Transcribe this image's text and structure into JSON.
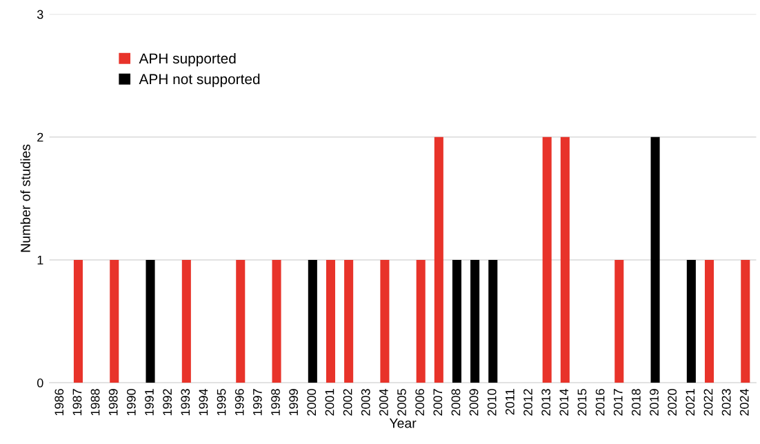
{
  "chart_data": {
    "type": "bar",
    "stacked": true,
    "xlabel": "Year",
    "ylabel": "Number of studies",
    "categories": [
      "1986",
      "1987",
      "1988",
      "1989",
      "1990",
      "1991",
      "1992",
      "1993",
      "1994",
      "1995",
      "1996",
      "1997",
      "1998",
      "1999",
      "2000",
      "2001",
      "2002",
      "2003",
      "2004",
      "2005",
      "2006",
      "2007",
      "2008",
      "2009",
      "2010",
      "2011",
      "2012",
      "2013",
      "2014",
      "2015",
      "2016",
      "2017",
      "2018",
      "2019",
      "2020",
      "2021",
      "2022",
      "2023",
      "2024"
    ],
    "series": [
      {
        "name": "APH supported",
        "color": "#e8332a",
        "values": [
          0,
          1,
          0,
          1,
          0,
          0,
          0,
          1,
          0,
          0,
          1,
          0,
          1,
          0,
          0,
          1,
          1,
          0,
          1,
          0,
          1,
          2,
          0,
          0,
          0,
          0,
          0,
          2,
          2,
          0,
          0,
          1,
          0,
          0,
          0,
          0,
          1,
          0,
          1
        ]
      },
      {
        "name": "APH not supported",
        "color": "#000000",
        "values": [
          0,
          0,
          0,
          0,
          0,
          1,
          0,
          0,
          0,
          0,
          0,
          0,
          0,
          0,
          1,
          0,
          0,
          0,
          0,
          0,
          0,
          0,
          1,
          1,
          1,
          0,
          0,
          0,
          0,
          0,
          0,
          0,
          0,
          2,
          0,
          1,
          0,
          0,
          0
        ]
      }
    ],
    "ylim": [
      0,
      3
    ],
    "yticks": [
      0,
      1,
      2,
      3
    ],
    "grid": "y",
    "legend": "top left"
  }
}
